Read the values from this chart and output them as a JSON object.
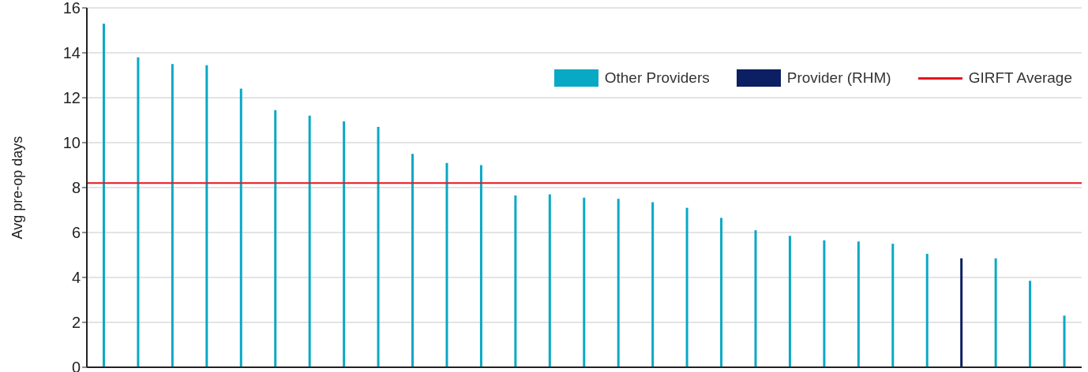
{
  "chart_data": {
    "type": "bar",
    "ylabel": "Avg pre-op days",
    "categories": [
      null,
      null,
      null,
      null,
      null,
      null,
      null,
      null,
      null,
      null,
      null,
      null,
      null,
      null,
      null,
      null,
      null,
      null,
      null,
      null,
      null,
      null,
      null,
      null,
      null,
      null,
      null,
      null,
      null
    ],
    "series": [
      {
        "name": "Other Providers",
        "color": "#08a9c5",
        "values": [
          15.3,
          13.8,
          13.5,
          13.45,
          12.4,
          11.45,
          11.2,
          10.95,
          10.7,
          9.5,
          9.1,
          9.0,
          7.65,
          7.7,
          7.55,
          7.5,
          7.35,
          7.1,
          6.65,
          6.1,
          5.85,
          5.65,
          5.6,
          5.5,
          5.05,
          null,
          4.85,
          3.85,
          2.3
        ]
      },
      {
        "name": "Provider (RHM)",
        "color": "#0c1f63",
        "values": [
          null,
          null,
          null,
          null,
          null,
          null,
          null,
          null,
          null,
          null,
          null,
          null,
          null,
          null,
          null,
          null,
          null,
          null,
          null,
          null,
          null,
          null,
          null,
          null,
          null,
          4.85,
          null,
          null,
          null
        ]
      }
    ],
    "stacked": true,
    "ylim": [
      0,
      16
    ],
    "yticks": [
      0,
      2,
      4,
      6,
      8,
      10,
      12,
      14,
      16
    ],
    "ref_lines": [
      {
        "axis": "y",
        "value": 8.2,
        "label": "GIRFT Average",
        "color": "#e8141c"
      }
    ],
    "grid": "y",
    "legend": "top right",
    "tick_labels": "y"
  }
}
